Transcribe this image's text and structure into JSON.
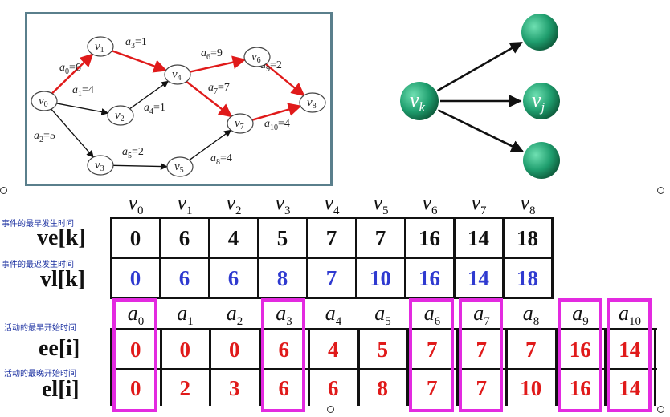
{
  "graph": {
    "nodes": [
      {
        "id": "v0",
        "label": "v",
        "sub": "0"
      },
      {
        "id": "v1",
        "label": "v",
        "sub": "1"
      },
      {
        "id": "v2",
        "label": "v",
        "sub": "2"
      },
      {
        "id": "v3",
        "label": "v",
        "sub": "3"
      },
      {
        "id": "v4",
        "label": "v",
        "sub": "4"
      },
      {
        "id": "v5",
        "label": "v",
        "sub": "5"
      },
      {
        "id": "v6",
        "label": "v",
        "sub": "6"
      },
      {
        "id": "v7",
        "label": "v",
        "sub": "7"
      },
      {
        "id": "v8",
        "label": "v",
        "sub": "8"
      }
    ],
    "edges": [
      {
        "from": "v0",
        "to": "v1",
        "label": "a",
        "sub": "0",
        "value": "=6",
        "critical": true
      },
      {
        "from": "v0",
        "to": "v2",
        "label": "a",
        "sub": "1",
        "value": "=4",
        "critical": false
      },
      {
        "from": "v0",
        "to": "v3",
        "label": "a",
        "sub": "2",
        "value": "=5",
        "critical": false
      },
      {
        "from": "v1",
        "to": "v4",
        "label": "a",
        "sub": "3",
        "value": "=1",
        "critical": true
      },
      {
        "from": "v2",
        "to": "v4",
        "label": "a",
        "sub": "4",
        "value": "=1",
        "critical": false
      },
      {
        "from": "v3",
        "to": "v5",
        "label": "a",
        "sub": "5",
        "value": "=2",
        "critical": false
      },
      {
        "from": "v4",
        "to": "v6",
        "label": "a",
        "sub": "6",
        "value": "=9",
        "critical": true
      },
      {
        "from": "v4",
        "to": "v7",
        "label": "a",
        "sub": "7",
        "value": "=7",
        "critical": true
      },
      {
        "from": "v5",
        "to": "v7",
        "label": "a",
        "sub": "8",
        "value": "=4",
        "critical": false
      },
      {
        "from": "v6",
        "to": "v8",
        "label": "a",
        "sub": "9",
        "value": "=2",
        "critical": true
      },
      {
        "from": "v7",
        "to": "v8",
        "label": "a",
        "sub": "10",
        "value": "=4",
        "critical": true
      }
    ]
  },
  "fanout": {
    "source": {
      "label": "v",
      "sub": "k"
    },
    "target": {
      "label": "v",
      "sub": "j"
    },
    "node_color": "#1f9e6e"
  },
  "events": {
    "headers": [
      {
        "label": "v",
        "sub": "0"
      },
      {
        "label": "v",
        "sub": "1"
      },
      {
        "label": "v",
        "sub": "2"
      },
      {
        "label": "v",
        "sub": "3"
      },
      {
        "label": "v",
        "sub": "4"
      },
      {
        "label": "v",
        "sub": "5"
      },
      {
        "label": "v",
        "sub": "6"
      },
      {
        "label": "v",
        "sub": "7"
      },
      {
        "label": "v",
        "sub": "8"
      }
    ],
    "ve_caption": "事件的最早发生时间",
    "ve_label": "ve[k]",
    "ve": [
      "0",
      "6",
      "4",
      "5",
      "7",
      "7",
      "16",
      "14",
      "18"
    ],
    "vl_caption": "事件的最迟发生时间",
    "vl_label": "vl[k]",
    "vl": [
      "0",
      "6",
      "6",
      "8",
      "7",
      "10",
      "16",
      "14",
      "18"
    ]
  },
  "activities": {
    "headers": [
      {
        "label": "a",
        "sub": "0"
      },
      {
        "label": "a",
        "sub": "1"
      },
      {
        "label": "a",
        "sub": "2"
      },
      {
        "label": "a",
        "sub": "3"
      },
      {
        "label": "a",
        "sub": "4"
      },
      {
        "label": "a",
        "sub": "5"
      },
      {
        "label": "a",
        "sub": "6"
      },
      {
        "label": "a",
        "sub": "7"
      },
      {
        "label": "a",
        "sub": "8"
      },
      {
        "label": "a",
        "sub": "9"
      },
      {
        "label": "a",
        "sub": "10"
      }
    ],
    "ee_caption": "活动的最早开始时间",
    "ee_label": "ee[i]",
    "ee": [
      "0",
      "0",
      "0",
      "6",
      "4",
      "5",
      "7",
      "7",
      "7",
      "16",
      "14"
    ],
    "el_caption": "活动的最晚开始时间",
    "el_label": "el[i]",
    "el": [
      "0",
      "2",
      "3",
      "6",
      "6",
      "8",
      "7",
      "7",
      "10",
      "16",
      "14"
    ],
    "critical": [
      true,
      false,
      false,
      true,
      false,
      false,
      true,
      true,
      false,
      true,
      true
    ]
  },
  "colors": {
    "critical_edge": "#e01a1a",
    "highlight": "#e32ae0",
    "ve": "#111111",
    "vl": "#2f3ad0",
    "activity": "#e01a1a"
  }
}
